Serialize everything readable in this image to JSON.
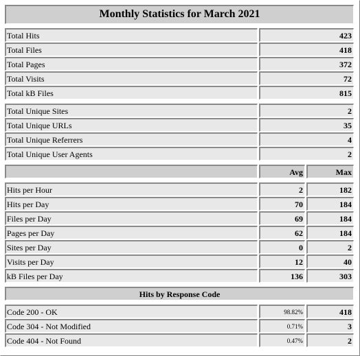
{
  "title": "Monthly Statistics for March 2021",
  "totals": [
    {
      "label": "Total Hits",
      "value": "423"
    },
    {
      "label": "Total Files",
      "value": "418"
    },
    {
      "label": "Total Pages",
      "value": "372"
    },
    {
      "label": "Total Visits",
      "value": "72"
    },
    {
      "label": "Total kB Files",
      "value": "815"
    }
  ],
  "uniques": [
    {
      "label": "Total Unique Sites",
      "value": "2"
    },
    {
      "label": "Total Unique URLs",
      "value": "35"
    },
    {
      "label": "Total Unique Referrers",
      "value": "4"
    },
    {
      "label": "Total Unique User Agents",
      "value": "2"
    }
  ],
  "avg_header": "Avg",
  "max_header": "Max",
  "rates": [
    {
      "label": "Hits per Hour",
      "avg": "2",
      "max": "182"
    },
    {
      "label": "Hits per Day",
      "avg": "70",
      "max": "184"
    },
    {
      "label": "Files per Day",
      "avg": "69",
      "max": "184"
    },
    {
      "label": "Pages per Day",
      "avg": "62",
      "max": "184"
    },
    {
      "label": "Sites per Day",
      "avg": "0",
      "max": "2"
    },
    {
      "label": "Visits per Day",
      "avg": "12",
      "max": "40"
    },
    {
      "label": "kB Files per Day",
      "avg": "136",
      "max": "303"
    }
  ],
  "response_title": "Hits by Response Code",
  "codes": [
    {
      "label": "Code 200 - OK",
      "pct": "98.82%",
      "value": "418"
    },
    {
      "label": "Code 304 - Not Modified",
      "pct": "0.71%",
      "value": "3"
    },
    {
      "label": "Code 404 - Not Found",
      "pct": "0.47%",
      "value": "2"
    }
  ]
}
